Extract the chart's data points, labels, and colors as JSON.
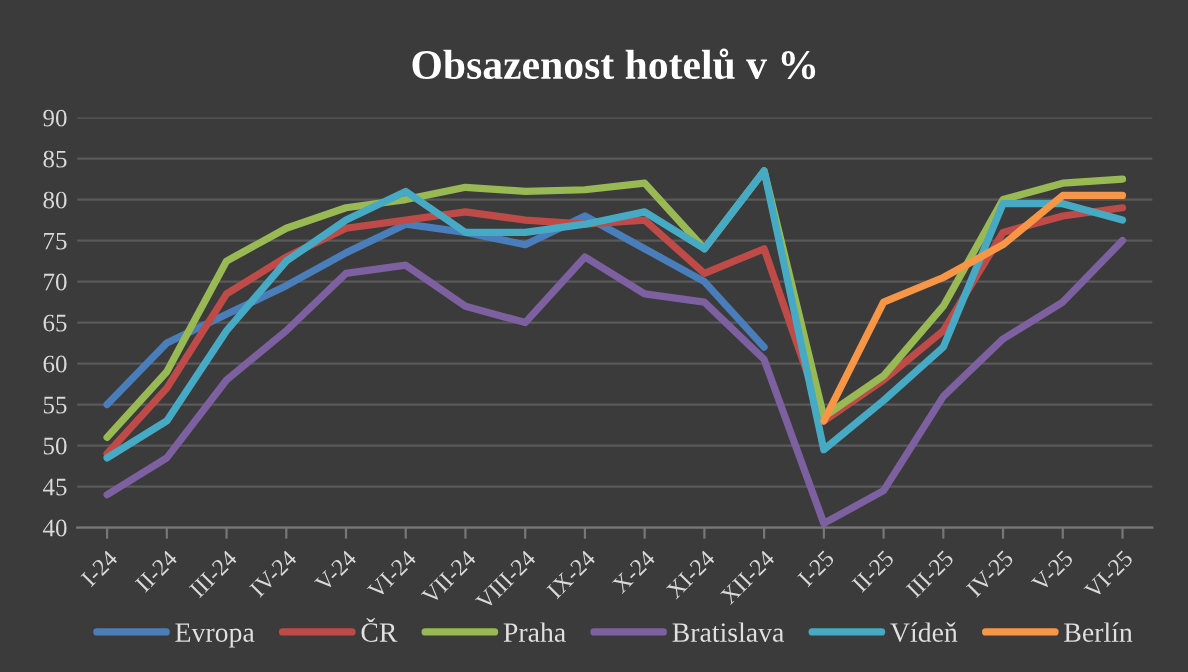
{
  "chart_data": {
    "type": "line",
    "title": "Obsazenost hotelů v %",
    "categories": [
      "I-24",
      "II-24",
      "III-24",
      "IV-24",
      "V-24",
      "VI-24",
      "VII-24",
      "VIII-24",
      "IX-24",
      "X-24",
      "XI-24",
      "XII-24",
      "I-25",
      "II-25",
      "III-25",
      "IV-25",
      "V-25",
      "VI-25"
    ],
    "series": [
      {
        "name": "Evropa",
        "color": "#4a7ebb",
        "values": [
          55,
          62.5,
          66,
          69.5,
          73.5,
          77,
          76,
          74.5,
          78,
          74,
          70,
          62,
          null,
          null,
          null,
          null,
          null,
          null
        ]
      },
      {
        "name": "ČR",
        "color": "#be4b48",
        "values": [
          49,
          57,
          68.5,
          73,
          76.5,
          77.5,
          78.5,
          77.5,
          77,
          77.5,
          71,
          74,
          53,
          58,
          64,
          76,
          78,
          79
        ]
      },
      {
        "name": "Praha",
        "color": "#98b954",
        "values": [
          51,
          59,
          72.5,
          76.5,
          79,
          80,
          81.5,
          81,
          81.2,
          82,
          74,
          83.5,
          53.5,
          58.5,
          67,
          80,
          82,
          82.5
        ]
      },
      {
        "name": "Bratislava",
        "color": "#7d60a0",
        "values": [
          44,
          48.5,
          58,
          64,
          71,
          72,
          67,
          65,
          73,
          68.5,
          67.5,
          60.5,
          40.5,
          44.5,
          56,
          63,
          67.5,
          75
        ]
      },
      {
        "name": "Vídeň",
        "color": "#46aac5",
        "values": [
          48.5,
          53,
          64,
          72.5,
          77.5,
          81,
          76,
          76,
          77,
          78.5,
          74,
          83.5,
          49.5,
          55.5,
          62,
          79.5,
          79.5,
          77.5
        ]
      },
      {
        "name": "Berlín",
        "color": "#f79646",
        "values": [
          null,
          null,
          null,
          null,
          null,
          null,
          null,
          null,
          null,
          null,
          null,
          null,
          53,
          67.5,
          70.5,
          74.5,
          80.5,
          80.5
        ]
      }
    ],
    "ylim": [
      40,
      90
    ],
    "yticks": [
      40,
      45,
      50,
      55,
      60,
      65,
      70,
      75,
      80,
      85,
      90
    ],
    "grid": "y",
    "legend": "bottom",
    "marker": "none",
    "line_style": "solid"
  }
}
